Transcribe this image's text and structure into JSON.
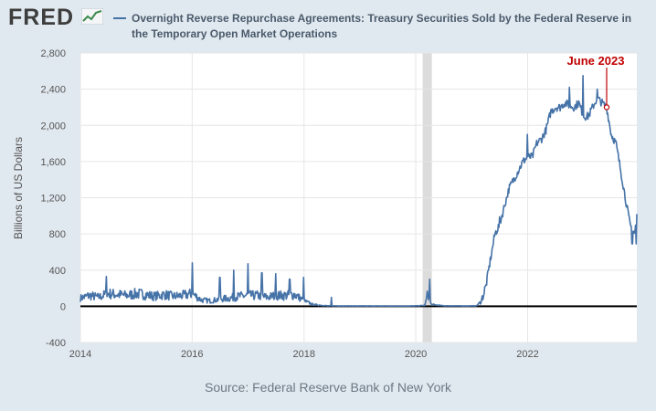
{
  "header": {
    "logo_text": "FRED",
    "logo_icon": "line-chart-icon"
  },
  "chart_data": {
    "type": "line",
    "title": "Overnight Reverse Repurchase Agreements: Treasury Securities Sold by the Federal Reserve in the Temporary Open Market Operations",
    "ylabel": "Billions of US Dollars",
    "xlabel": "",
    "ylim": [
      -400,
      2800
    ],
    "xlim": [
      "2014-01-01",
      "2023-12-15"
    ],
    "yticks": [
      -400,
      0,
      400,
      800,
      1200,
      1600,
      2000,
      2400,
      2800
    ],
    "ytick_labels": [
      "-400",
      "0",
      "400",
      "800",
      "1,200",
      "1,600",
      "2,000",
      "2,400",
      "2,800"
    ],
    "xticks": [
      "2014-01-01",
      "2016-01-01",
      "2018-01-01",
      "2020-01-01",
      "2022-01-01"
    ],
    "xtick_labels": [
      "2014",
      "2016",
      "2018",
      "2020",
      "2022"
    ],
    "recession_shading": [
      "2020-02-15",
      "2020-04-15"
    ],
    "grid": true,
    "zero_line": true,
    "series": [
      {
        "name": "Overnight Reverse Repurchase Agreements: Treasury Securities Sold by the Federal Reserve in the Temporary Open Market Operations",
        "color": "#4572a7",
        "points": [
          [
            "2014-01-01",
            90
          ],
          [
            "2014-03-01",
            120
          ],
          [
            "2014-05-01",
            100
          ],
          [
            "2014-07-01",
            140
          ],
          [
            "2014-09-01",
            130
          ],
          [
            "2014-11-01",
            120
          ],
          [
            "2015-01-01",
            140
          ],
          [
            "2015-03-01",
            130
          ],
          [
            "2015-05-01",
            110
          ],
          [
            "2015-07-01",
            130
          ],
          [
            "2015-09-01",
            110
          ],
          [
            "2015-11-01",
            120
          ],
          [
            "2016-01-01",
            140
          ],
          [
            "2016-03-01",
            70
          ],
          [
            "2016-05-01",
            60
          ],
          [
            "2016-07-01",
            80
          ],
          [
            "2016-09-01",
            90
          ],
          [
            "2016-11-01",
            110
          ],
          [
            "2017-01-01",
            120
          ],
          [
            "2017-03-01",
            120
          ],
          [
            "2017-05-01",
            100
          ],
          [
            "2017-07-01",
            120
          ],
          [
            "2017-09-01",
            120
          ],
          [
            "2017-11-01",
            130
          ],
          [
            "2018-01-01",
            60
          ],
          [
            "2018-03-01",
            20
          ],
          [
            "2018-06-01",
            5
          ],
          [
            "2018-09-01",
            3
          ],
          [
            "2019-01-01",
            2
          ],
          [
            "2019-06-01",
            2
          ],
          [
            "2019-12-01",
            2
          ],
          [
            "2020-01-15",
            5
          ],
          [
            "2020-03-01",
            10
          ],
          [
            "2020-03-20",
            150
          ],
          [
            "2020-04-10",
            20
          ],
          [
            "2020-07-01",
            5
          ],
          [
            "2020-12-01",
            3
          ],
          [
            "2021-02-01",
            5
          ],
          [
            "2021-03-01",
            50
          ],
          [
            "2021-04-01",
            200
          ],
          [
            "2021-05-01",
            500
          ],
          [
            "2021-06-01",
            800
          ],
          [
            "2021-07-01",
            900
          ],
          [
            "2021-08-01",
            1100
          ],
          [
            "2021-09-01",
            1300
          ],
          [
            "2021-10-01",
            1400
          ],
          [
            "2021-11-01",
            1500
          ],
          [
            "2021-12-01",
            1600
          ],
          [
            "2022-01-01",
            1650
          ],
          [
            "2022-02-01",
            1650
          ],
          [
            "2022-03-01",
            1800
          ],
          [
            "2022-04-01",
            1850
          ],
          [
            "2022-05-01",
            1950
          ],
          [
            "2022-06-01",
            2150
          ],
          [
            "2022-07-01",
            2200
          ],
          [
            "2022-08-01",
            2200
          ],
          [
            "2022-09-01",
            2250
          ],
          [
            "2022-10-01",
            2220
          ],
          [
            "2022-11-01",
            2200
          ],
          [
            "2022-12-01",
            2250
          ],
          [
            "2023-01-01",
            2100
          ],
          [
            "2023-02-01",
            2100
          ],
          [
            "2023-03-01",
            2200
          ],
          [
            "2023-04-01",
            2300
          ],
          [
            "2023-05-01",
            2250
          ],
          [
            "2023-06-01",
            2200
          ],
          [
            "2023-07-01",
            1900
          ],
          [
            "2023-08-01",
            1800
          ],
          [
            "2023-09-01",
            1500
          ],
          [
            "2023-10-01",
            1200
          ],
          [
            "2023-11-01",
            900
          ],
          [
            "2023-12-01",
            800
          ],
          [
            "2023-12-15",
            1000
          ]
        ],
        "spikes": [
          [
            "2014-06-20",
            330
          ],
          [
            "2016-01-01",
            480
          ],
          [
            "2016-06-30",
            320
          ],
          [
            "2016-09-30",
            400
          ],
          [
            "2016-12-30",
            470
          ],
          [
            "2017-03-31",
            370
          ],
          [
            "2017-06-30",
            360
          ],
          [
            "2017-09-29",
            300
          ],
          [
            "2017-12-29",
            320
          ],
          [
            "2018-06-29",
            100
          ],
          [
            "2020-03-31",
            300
          ],
          [
            "2021-06-30",
            990
          ],
          [
            "2021-12-31",
            1900
          ],
          [
            "2022-09-30",
            2420
          ],
          [
            "2022-12-30",
            2550
          ],
          [
            "2023-03-31",
            2400
          ],
          [
            "2023-11-15",
            690
          ],
          [
            "2023-12-10",
            690
          ]
        ]
      }
    ],
    "annotations": [
      {
        "text": "June 2023",
        "x": "2023-06-01",
        "y": 2200,
        "color": "#c00000"
      }
    ]
  },
  "footer": {
    "source": "Source: Federal Reserve Bank of New York"
  }
}
